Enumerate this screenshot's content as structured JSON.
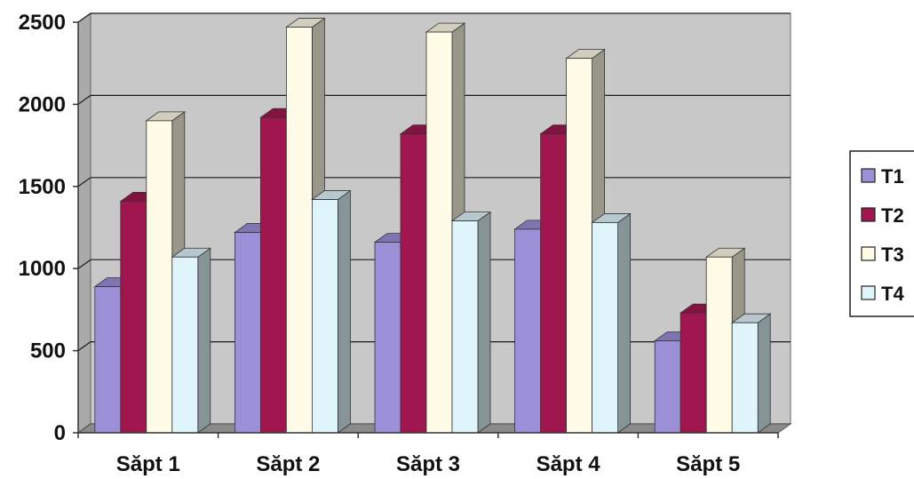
{
  "chart_data": {
    "type": "bar",
    "style": "3d-clustered-column",
    "title": "",
    "xlabel": "",
    "ylabel": "",
    "categories": [
      "Săpt 1",
      "Săpt 2",
      "Săpt 3",
      "Săpt 4",
      "Săpt 5"
    ],
    "series": [
      {
        "name": "T1",
        "values": [
          890,
          1220,
          1160,
          1240,
          560
        ],
        "color": "#9b8fd8"
      },
      {
        "name": "T2",
        "values": [
          1410,
          1920,
          1820,
          1820,
          730
        ],
        "color": "#a0174f"
      },
      {
        "name": "T3",
        "values": [
          1900,
          2470,
          2440,
          2280,
          1070
        ],
        "color": "#fffbe6"
      },
      {
        "name": "T4",
        "values": [
          1070,
          1420,
          1290,
          1280,
          670
        ],
        "color": "#dff5fb"
      }
    ],
    "ylim": [
      0,
      2500
    ],
    "yticks": [
      0,
      500,
      1000,
      1500,
      2000,
      2500
    ],
    "grid": true,
    "legend": {
      "position": "right"
    },
    "colors": {
      "plot_wall": "#c8c8c8",
      "gridline": "#1a1a1a",
      "floor": "#8a8a8a"
    }
  }
}
